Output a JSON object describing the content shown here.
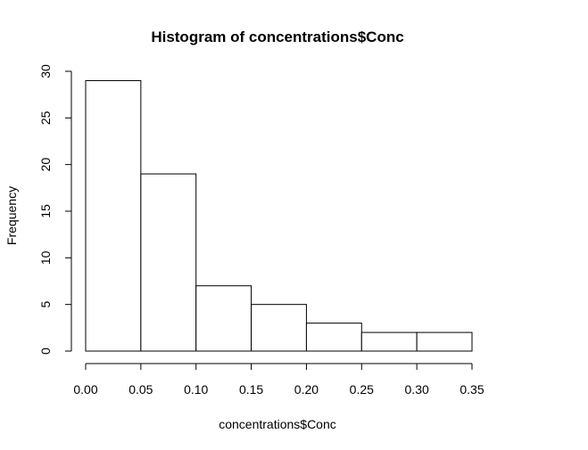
{
  "chart_data": {
    "type": "bar",
    "title": "Histogram of concentrations$Conc",
    "xlabel": "concentrations$Conc",
    "ylabel": "Frequency",
    "bins": [
      {
        "start": 0.0,
        "end": 0.05,
        "count": 29
      },
      {
        "start": 0.05,
        "end": 0.1,
        "count": 19
      },
      {
        "start": 0.1,
        "end": 0.15,
        "count": 7
      },
      {
        "start": 0.15,
        "end": 0.2,
        "count": 5
      },
      {
        "start": 0.2,
        "end": 0.25,
        "count": 3
      },
      {
        "start": 0.25,
        "end": 0.3,
        "count": 2
      },
      {
        "start": 0.3,
        "end": 0.35,
        "count": 2
      }
    ],
    "xlim": [
      0.0,
      0.35
    ],
    "ylim": [
      0,
      30
    ],
    "x_ticks": [
      "0.00",
      "0.05",
      "0.10",
      "0.15",
      "0.20",
      "0.25",
      "0.30",
      "0.35"
    ],
    "x_tick_values": [
      0.0,
      0.05,
      0.1,
      0.15,
      0.2,
      0.25,
      0.3,
      0.35
    ],
    "y_ticks": [
      "0",
      "5",
      "10",
      "15",
      "20",
      "25",
      "30"
    ],
    "y_tick_values": [
      0,
      5,
      10,
      15,
      20,
      25,
      30
    ],
    "grid": false,
    "colors": {
      "bar_fill": "#ffffff",
      "bar_stroke": "#000000"
    }
  }
}
